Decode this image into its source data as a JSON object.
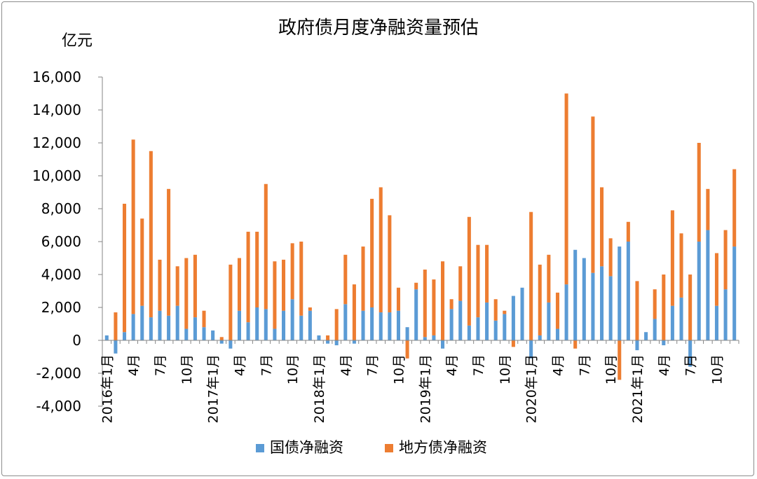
{
  "chart_data": {
    "type": "bar",
    "stacked": true,
    "title": "政府债月度净融资量预估",
    "ylabel": "亿元",
    "ylim": [
      -4000,
      16000
    ],
    "yticks": [
      -4000,
      -2000,
      0,
      2000,
      4000,
      6000,
      8000,
      10000,
      12000,
      14000,
      16000
    ],
    "ytick_labels": [
      "-4,000",
      "-2,000",
      "0",
      "2,000",
      "4,000",
      "6,000",
      "8,000",
      "10,000",
      "12,000",
      "14,000",
      "16,000"
    ],
    "grid": false,
    "legend_position": "bottom",
    "x_tick_labels": [
      {
        "index": 0,
        "label": "2016年1月"
      },
      {
        "index": 3,
        "label": "4月"
      },
      {
        "index": 6,
        "label": "7月"
      },
      {
        "index": 9,
        "label": "10月"
      },
      {
        "index": 12,
        "label": "2017年1月"
      },
      {
        "index": 15,
        "label": "4月"
      },
      {
        "index": 18,
        "label": "7月"
      },
      {
        "index": 21,
        "label": "10月"
      },
      {
        "index": 24,
        "label": "2018年1月"
      },
      {
        "index": 27,
        "label": "4月"
      },
      {
        "index": 30,
        "label": "7月"
      },
      {
        "index": 33,
        "label": "10月"
      },
      {
        "index": 36,
        "label": "2019年1月"
      },
      {
        "index": 39,
        "label": "4月"
      },
      {
        "index": 42,
        "label": "7月"
      },
      {
        "index": 45,
        "label": "10月"
      },
      {
        "index": 48,
        "label": "2020年1月"
      },
      {
        "index": 51,
        "label": "4月"
      },
      {
        "index": 54,
        "label": "7月"
      },
      {
        "index": 57,
        "label": "10月"
      },
      {
        "index": 60,
        "label": "2021年1月"
      },
      {
        "index": 63,
        "label": "4月"
      },
      {
        "index": 66,
        "label": "7月"
      },
      {
        "index": 69,
        "label": "10月"
      }
    ],
    "series": [
      {
        "name": "国债净融资",
        "color": "#5b9bd5",
        "values": [
          300,
          -800,
          500,
          1600,
          2100,
          1400,
          1800,
          1500,
          2100,
          700,
          1400,
          800,
          600,
          -200,
          -500,
          1800,
          1100,
          2000,
          1900,
          700,
          1800,
          2500,
          1500,
          1800,
          300,
          -200,
          -300,
          2200,
          -200,
          1800,
          2000,
          1700,
          1700,
          1800,
          800,
          3100,
          200,
          300,
          -500,
          1900,
          2400,
          900,
          1400,
          2300,
          1200,
          1600,
          2700,
          3200,
          -1100,
          300,
          2300,
          700,
          3400,
          5500,
          5000,
          4100,
          4500,
          3900,
          5700,
          6000,
          -600,
          500,
          1300,
          -300,
          2100,
          2600,
          -1600,
          6000,
          6700,
          2100,
          3100,
          5700
        ]
      },
      {
        "name": "地方债净融资",
        "color": "#ed7d31",
        "values": [
          0,
          1700,
          7800,
          10600,
          5300,
          10100,
          3100,
          7700,
          2400,
          4300,
          3800,
          1000,
          0,
          200,
          4600,
          3200,
          5500,
          4600,
          7600,
          4100,
          3100,
          3400,
          4500,
          200,
          0,
          300,
          1900,
          3000,
          3400,
          3900,
          6600,
          7600,
          5900,
          1400,
          -1100,
          400,
          4100,
          3400,
          4800,
          600,
          2100,
          6600,
          4400,
          3500,
          1300,
          200,
          -400,
          0,
          7800,
          4300,
          2900,
          2200,
          11600,
          -500,
          0,
          9500,
          4800,
          2300,
          -2400,
          1200,
          3600,
          0,
          1800,
          4000,
          5800,
          3900,
          4000,
          6000,
          2500,
          3200,
          3600,
          4700
        ]
      }
    ]
  }
}
